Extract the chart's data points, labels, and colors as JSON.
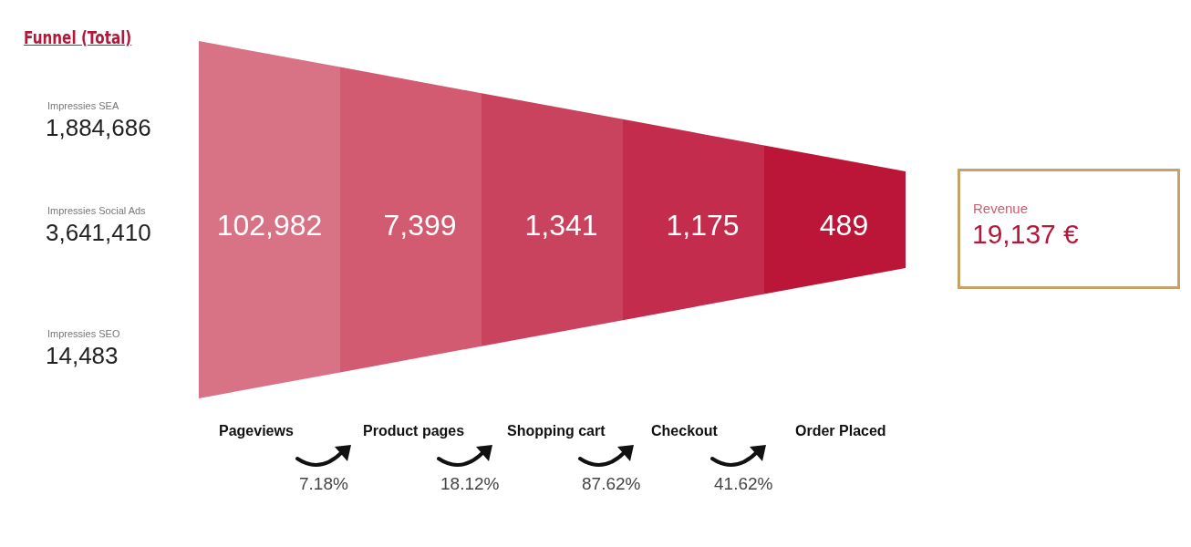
{
  "chart_data": {
    "type": "other",
    "title": "Funnel (Total)",
    "categories": [
      "Pageviews",
      "Product pages",
      "Shopping cart",
      "Checkout",
      "Order Placed"
    ],
    "colors": [
      "#d87386",
      "#d25a71",
      "#c9435f",
      "#c32c4c",
      "#bb1537"
    ],
    "values": [
      102982,
      7399,
      1341,
      1175,
      489
    ],
    "data_labels": true,
    "value_labels": [
      "102,982",
      "7,399",
      "1,341",
      "1,175",
      "489"
    ],
    "annotations": [
      "Impressies SEA",
      "1,884,686",
      "Impressies Social Ads",
      "3,641,410",
      "Impressies SEO",
      "14,483",
      "Revenue",
      "19,137 €",
      "7.18%",
      "18.12%",
      "87.62%",
      "41.62%"
    ]
  }
}
